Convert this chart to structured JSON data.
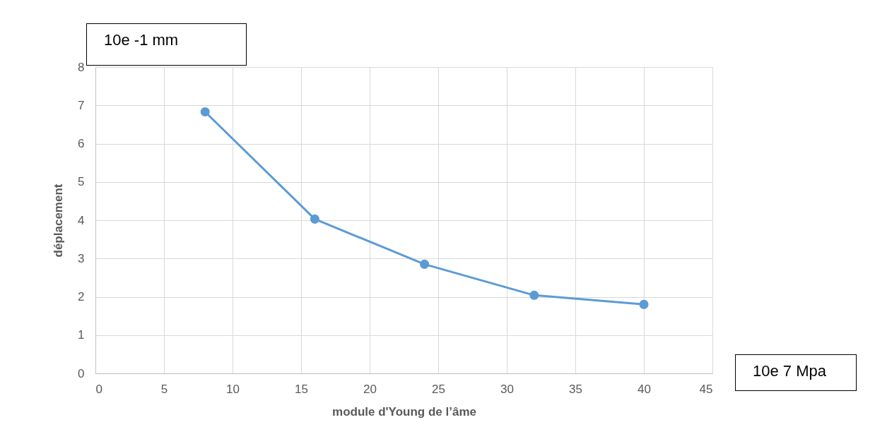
{
  "chart_data": {
    "type": "line",
    "xlabel": "module d'Young de l’âme",
    "ylabel": "déplacement",
    "annotations": [
      "10e -1 mm",
      "10e 7 Mpa"
    ],
    "x": [
      8,
      16,
      24,
      32,
      40
    ],
    "series": [
      {
        "color": "#5b9bd5",
        "values": [
          6.83,
          4.03,
          2.85,
          2.04,
          1.8
        ]
      }
    ],
    "xlim": [
      0,
      45
    ],
    "xticks": [
      0,
      5,
      10,
      15,
      20,
      25,
      30,
      35,
      40,
      45
    ],
    "ylim": [
      0,
      8
    ],
    "yticks": [
      0,
      1,
      2,
      3,
      4,
      5,
      6,
      7,
      8
    ],
    "grid": true,
    "marker": "circle",
    "line_style": "solid"
  }
}
